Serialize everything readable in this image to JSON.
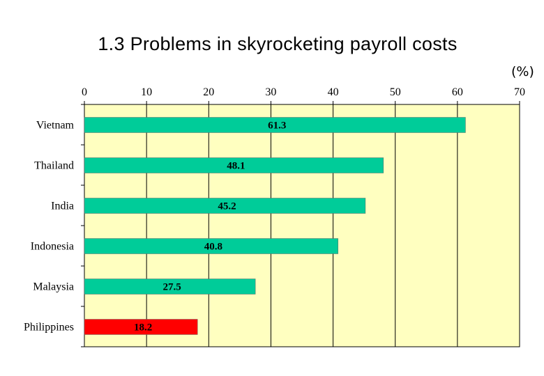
{
  "header": {
    "unit": "(%)"
  },
  "chart_data": {
    "type": "bar",
    "orientation": "horizontal",
    "title": "1.3 Problems in skyrocketing payroll costs",
    "xlabel": "",
    "ylabel": "",
    "xlim": [
      0,
      70
    ],
    "x_ticks": [
      0,
      10,
      20,
      30,
      40,
      50,
      60,
      70
    ],
    "grid": true,
    "categories": [
      "Vietnam",
      "Thailand",
      "India",
      "Indonesia",
      "Malaysia",
      "Philippines"
    ],
    "values": [
      61.3,
      48.1,
      45.2,
      40.8,
      27.5,
      18.2
    ],
    "value_labels": [
      "61.3",
      "48.1",
      "45.2",
      "40.8",
      "27.5",
      "18.2"
    ],
    "colors": {
      "plot_background": "#ffffc0",
      "bar_default": "#00cc99",
      "bar_highlight": "#ff0000",
      "grid": "#000000"
    },
    "highlight_categories": [
      "Philippines"
    ]
  }
}
